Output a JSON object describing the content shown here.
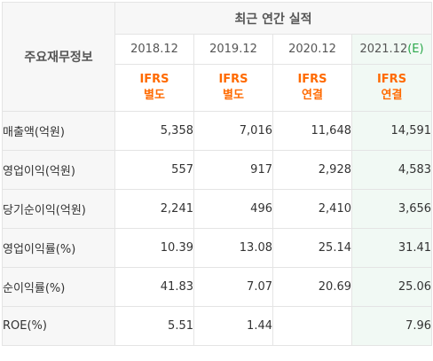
{
  "table": {
    "section_title": "최근 연간 실적",
    "row_header": "주요재무정보",
    "columns": [
      {
        "period": "2018.12",
        "suffix": "",
        "basis_top": "IFRS",
        "basis_bottom": "별도"
      },
      {
        "period": "2019.12",
        "suffix": "",
        "basis_top": "IFRS",
        "basis_bottom": "별도"
      },
      {
        "period": "2020.12",
        "suffix": "",
        "basis_top": "IFRS",
        "basis_bottom": "연결"
      },
      {
        "period": "2021.12",
        "suffix": "(E)",
        "basis_top": "IFRS",
        "basis_bottom": "연결"
      }
    ],
    "rows": [
      {
        "label": "매출액(억원)",
        "values": [
          "5,358",
          "7,016",
          "11,648",
          "14,591"
        ]
      },
      {
        "label": "영업이익(억원)",
        "values": [
          "557",
          "917",
          "2,928",
          "4,583"
        ]
      },
      {
        "label": "당기순이익(억원)",
        "values": [
          "2,241",
          "496",
          "2,410",
          "3,656"
        ]
      },
      {
        "label": "영업이익률(%)",
        "values": [
          "10.39",
          "13.08",
          "25.14",
          "31.41"
        ]
      },
      {
        "label": "순이익률(%)",
        "values": [
          "41.83",
          "7.07",
          "20.69",
          "25.06"
        ]
      },
      {
        "label": "ROE(%)",
        "values": [
          "5.51",
          "1.44",
          "",
          "7.96"
        ]
      }
    ],
    "colors": {
      "ifrs_text": "#ff6a00",
      "estimate_bg": "#f1f9f4",
      "estimate_suffix": "#2aa84a",
      "header_bg": "#f7f7f7",
      "border": "#e4e4e4"
    }
  }
}
